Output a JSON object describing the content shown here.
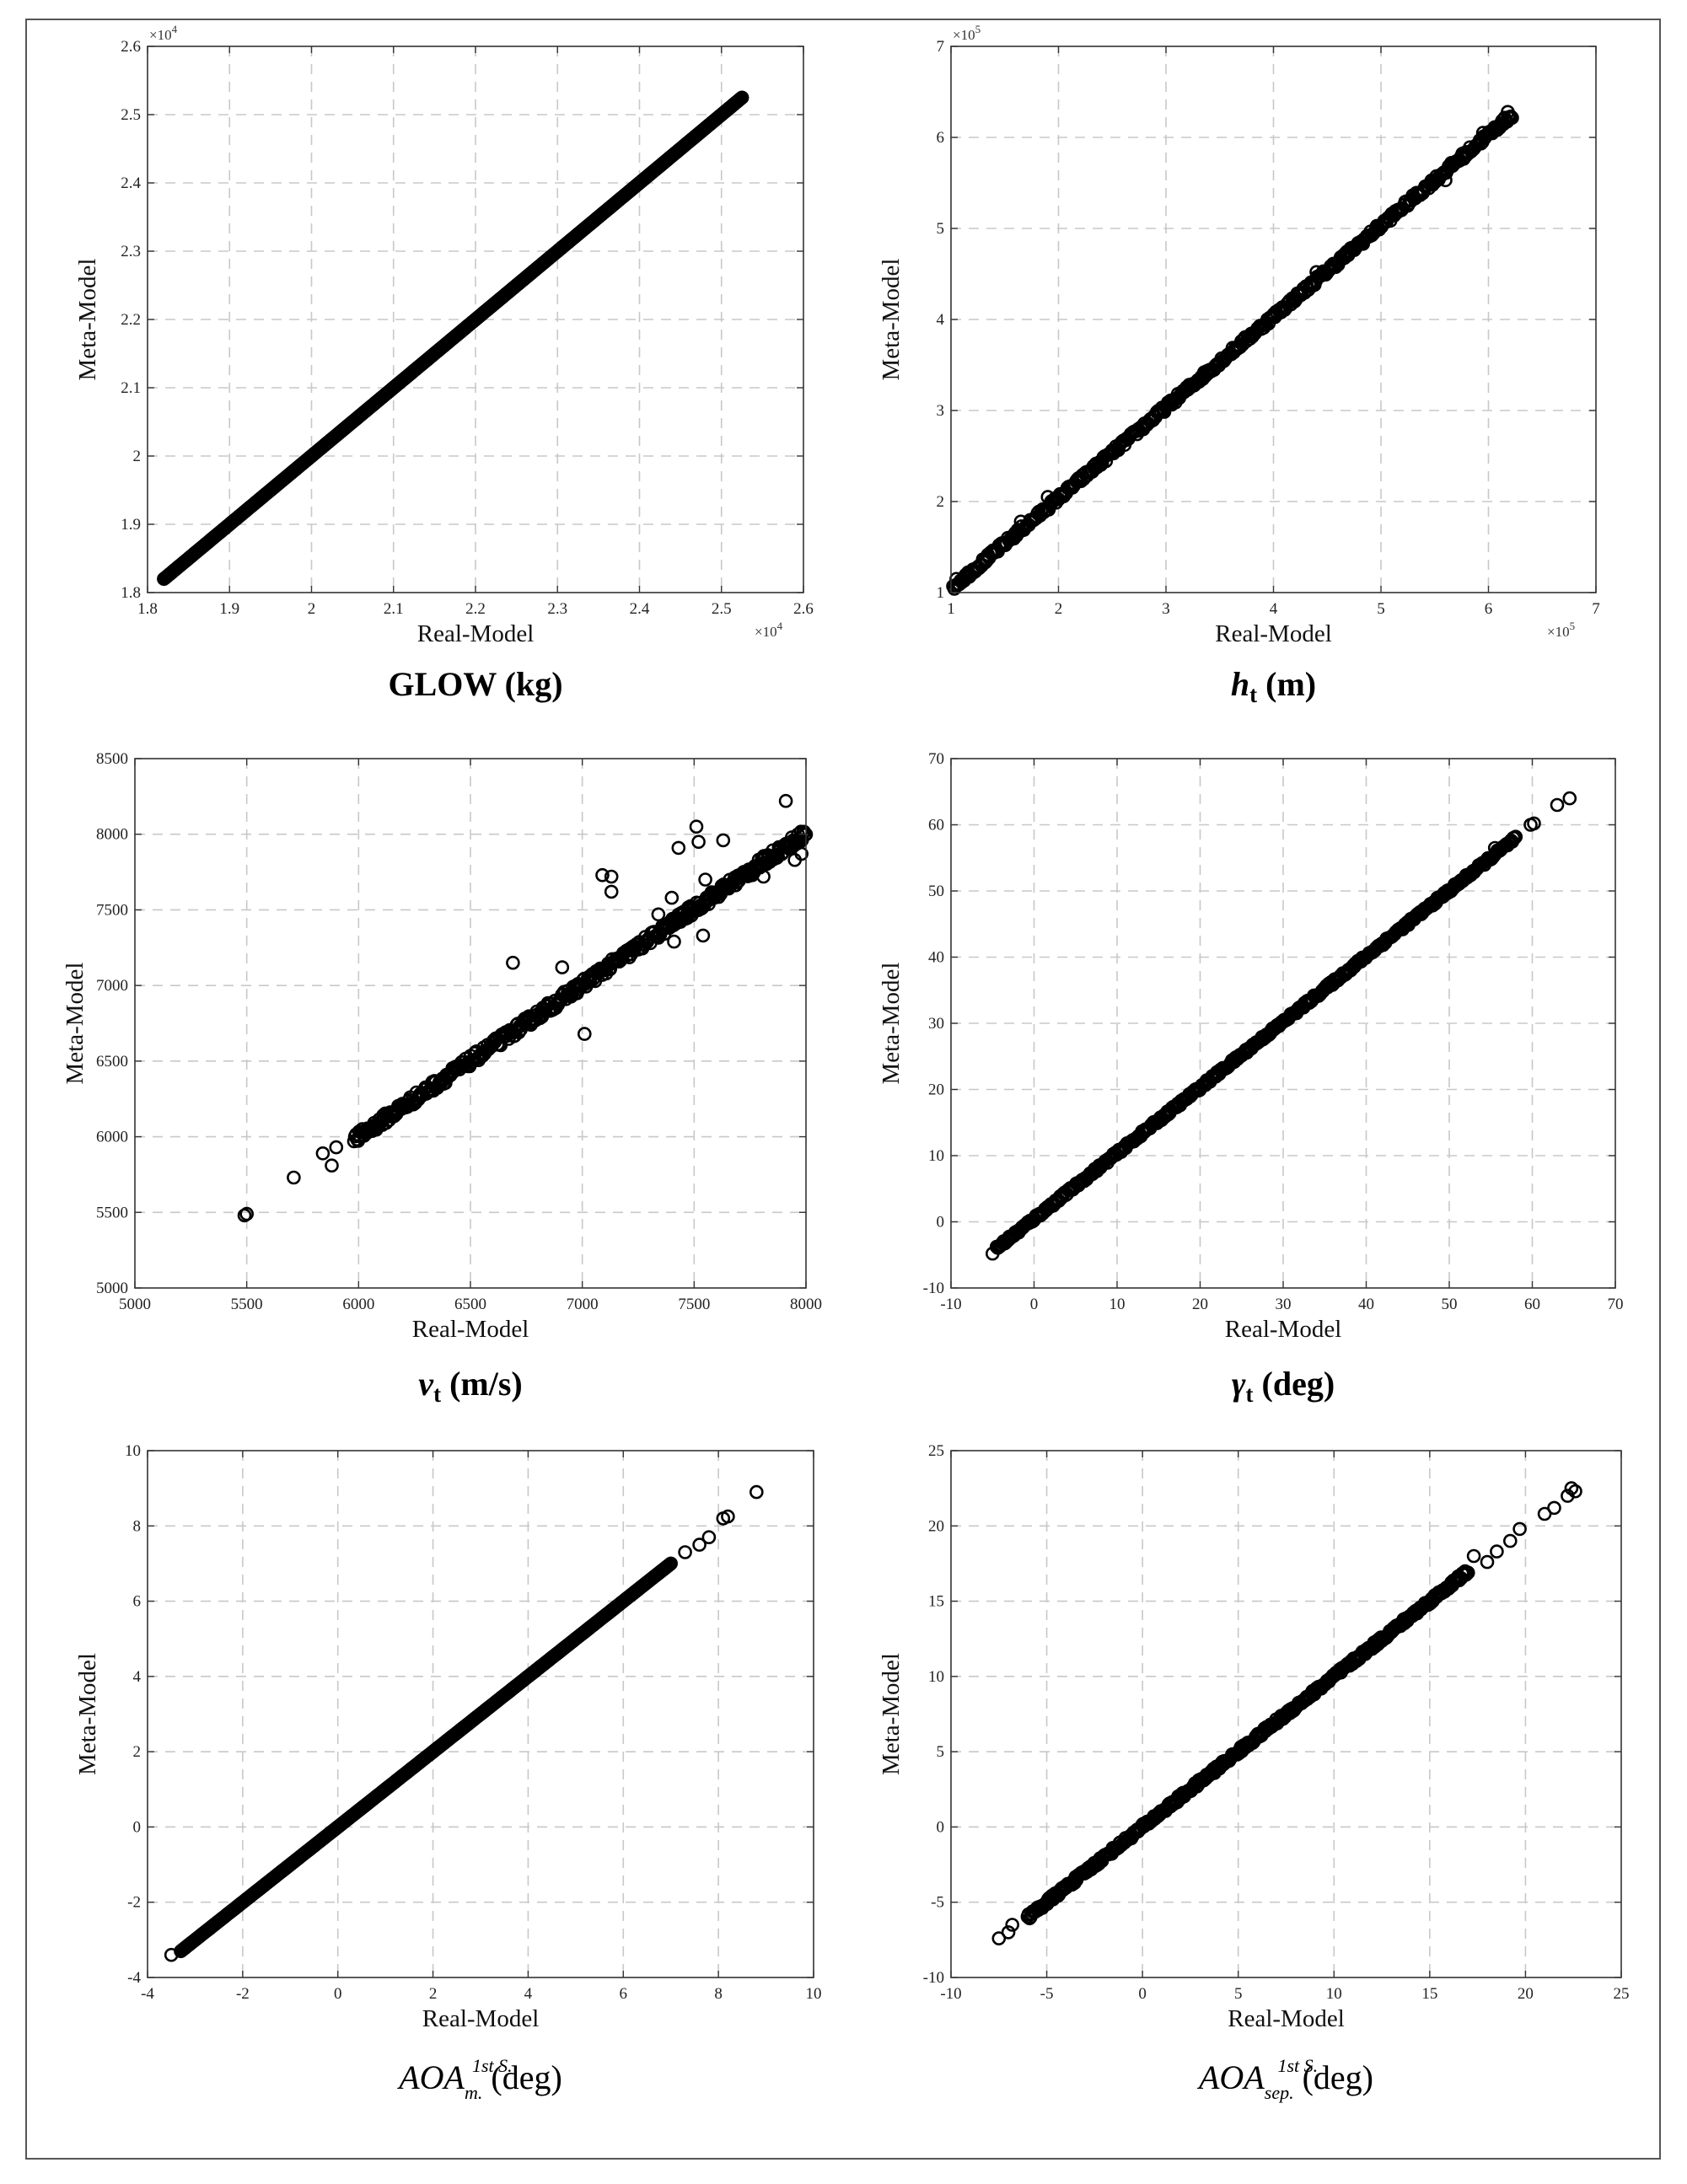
{
  "chart_data": [
    {
      "type": "scatter",
      "title": "GLOW (kg)",
      "xlabel": "Real-Model",
      "ylabel": "Meta-Model",
      "xlim": [
        18000,
        26000
      ],
      "ylim": [
        18000,
        26000
      ],
      "xticks": [
        18000,
        19000,
        20000,
        21000,
        22000,
        23000,
        24000,
        25000,
        26000
      ],
      "yticks": [
        18000,
        19000,
        20000,
        21000,
        22000,
        23000,
        24000,
        25000,
        26000
      ],
      "xtick_labels": [
        "1.8",
        "1.9",
        "2",
        "2.1",
        "2.2",
        "2.3",
        "2.4",
        "2.5",
        "2.6"
      ],
      "ytick_labels": [
        "1.8",
        "1.9",
        "2",
        "2.1",
        "2.2",
        "2.3",
        "2.4",
        "2.5",
        "2.6"
      ],
      "x_multiplier": "×10",
      "x_multiplier_exp": "4",
      "y_multiplier": "×10",
      "y_multiplier_exp": "4",
      "grid": true,
      "line": [
        [
          18200,
          18200
        ],
        [
          25250,
          25250
        ]
      ],
      "line_jitter": 0,
      "outliers": []
    },
    {
      "type": "scatter",
      "title": "h",
      "title_sub": "t",
      "title_unit": "(m)",
      "xlabel": "Real-Model",
      "ylabel": "Meta-Model",
      "xlim": [
        100000,
        700000
      ],
      "ylim": [
        100000,
        700000
      ],
      "xticks": [
        100000,
        200000,
        300000,
        400000,
        500000,
        600000,
        700000
      ],
      "yticks": [
        100000,
        200000,
        300000,
        400000,
        500000,
        600000,
        700000
      ],
      "xtick_labels": [
        "1",
        "2",
        "3",
        "4",
        "5",
        "6",
        "7"
      ],
      "ytick_labels": [
        "1",
        "2",
        "3",
        "4",
        "5",
        "6",
        "7"
      ],
      "x_multiplier": "×10",
      "x_multiplier_exp": "5",
      "y_multiplier": "×10",
      "y_multiplier_exp": "5",
      "grid": true,
      "line": [
        [
          102000,
          106000
        ],
        [
          622000,
          625000
        ]
      ],
      "line_jitter": 0.006,
      "outliers": [
        [
          105000,
          115000
        ],
        [
          110000,
          113000
        ],
        [
          165000,
          178000
        ],
        [
          440000,
          452000
        ],
        [
          595000,
          605000
        ],
        [
          618000,
          628000
        ],
        [
          612000,
          615000
        ],
        [
          560000,
          553000
        ],
        [
          190000,
          205000
        ]
      ]
    },
    {
      "type": "scatter",
      "title": "v",
      "title_sub": "t",
      "title_unit": "(m/s)",
      "xlabel": "Real-Model",
      "ylabel": "Meta-Model",
      "xlim": [
        5000,
        8000
      ],
      "ylim": [
        5000,
        8500
      ],
      "xticks": [
        5000,
        5500,
        6000,
        6500,
        7000,
        7500,
        8000
      ],
      "yticks": [
        5000,
        5500,
        6000,
        6500,
        7000,
        7500,
        8000,
        8500
      ],
      "xtick_labels": [
        "5000",
        "5500",
        "6000",
        "6500",
        "7000",
        "7500",
        "8000"
      ],
      "ytick_labels": [
        "5000",
        "5500",
        "6000",
        "6500",
        "7000",
        "7500",
        "8000",
        "8500"
      ],
      "grid": true,
      "line": [
        [
          5980,
          5980
        ],
        [
          8000,
          8010
        ]
      ],
      "line_jitter": 0.01,
      "outliers": [
        [
          5490,
          5480
        ],
        [
          5500,
          5490
        ],
        [
          5710,
          5730
        ],
        [
          5840,
          5890
        ],
        [
          5880,
          5810
        ],
        [
          5900,
          5930
        ],
        [
          6690,
          7150
        ],
        [
          6910,
          7120
        ],
        [
          7010,
          6680
        ],
        [
          7090,
          7730
        ],
        [
          7130,
          7720
        ],
        [
          7130,
          7620
        ],
        [
          7340,
          7470
        ],
        [
          7400,
          7580
        ],
        [
          7430,
          7910
        ],
        [
          7510,
          8050
        ],
        [
          7520,
          7950
        ],
        [
          7540,
          7330
        ],
        [
          7550,
          7700
        ],
        [
          7630,
          7960
        ],
        [
          7760,
          7730
        ],
        [
          7810,
          7720
        ],
        [
          7910,
          8220
        ],
        [
          7950,
          7830
        ],
        [
          7980,
          7870
        ],
        [
          7590,
          7580
        ],
        [
          7410,
          7290
        ],
        [
          7220,
          7250
        ]
      ]
    },
    {
      "type": "scatter",
      "title": "γ",
      "title_sub": "t",
      "title_unit": "(deg)",
      "xlabel": "Real-Model",
      "ylabel": "Meta-Model",
      "xlim": [
        -10,
        70
      ],
      "ylim": [
        -10,
        70
      ],
      "xticks": [
        -10,
        0,
        10,
        20,
        30,
        40,
        50,
        60,
        70
      ],
      "yticks": [
        -10,
        0,
        10,
        20,
        30,
        40,
        50,
        60,
        70
      ],
      "xtick_labels": [
        "-10",
        "0",
        "10",
        "20",
        "30",
        "40",
        "50",
        "60",
        "70"
      ],
      "ytick_labels": [
        "-10",
        "0",
        "10",
        "20",
        "30",
        "40",
        "50",
        "60",
        "70"
      ],
      "grid": true,
      "line": [
        [
          -4.5,
          -4
        ],
        [
          58,
          58
        ]
      ],
      "line_jitter": 0.004,
      "outliers": [
        [
          -5,
          -4.8
        ],
        [
          55.5,
          56.5
        ],
        [
          57,
          57
        ],
        [
          59.8,
          60
        ],
        [
          60.2,
          60.2
        ],
        [
          63,
          63
        ],
        [
          64.5,
          64
        ]
      ]
    },
    {
      "type": "scatter",
      "title": "AOA",
      "title_sup": "1st S.",
      "title_sub": "m.",
      "title_unit": "(deg)",
      "xlabel": "Real-Model",
      "ylabel": "Meta-Model",
      "xlim": [
        -4,
        10
      ],
      "ylim": [
        -4,
        10
      ],
      "xticks": [
        -4,
        -2,
        0,
        2,
        4,
        6,
        8,
        10
      ],
      "yticks": [
        -4,
        -2,
        0,
        2,
        4,
        6,
        8,
        10
      ],
      "xtick_labels": [
        "-4",
        "-2",
        "0",
        "2",
        "4",
        "6",
        "8",
        "10"
      ],
      "ytick_labels": [
        "-4",
        "-2",
        "0",
        "2",
        "4",
        "6",
        "8",
        "10"
      ],
      "grid": true,
      "line": [
        [
          -3.3,
          -3.3
        ],
        [
          7.0,
          7.0
        ]
      ],
      "line_jitter": 0,
      "outliers": [
        [
          -3.5,
          -3.4
        ],
        [
          7.3,
          7.3
        ],
        [
          7.6,
          7.5
        ],
        [
          7.8,
          7.7
        ],
        [
          8.1,
          8.2
        ],
        [
          8.2,
          8.25
        ],
        [
          8.8,
          8.9
        ]
      ]
    },
    {
      "type": "scatter",
      "title": "AOA",
      "title_sup": "1st S.",
      "title_sub": "sep.",
      "title_unit": "(deg)",
      "xlabel": "Real-Model",
      "ylabel": "Meta-Model",
      "xlim": [
        -10,
        25
      ],
      "ylim": [
        -10,
        25
      ],
      "xticks": [
        -10,
        -5,
        0,
        5,
        10,
        15,
        20,
        25
      ],
      "yticks": [
        -10,
        -5,
        0,
        5,
        10,
        15,
        20,
        25
      ],
      "xtick_labels": [
        "-10",
        "-5",
        "0",
        "5",
        "10",
        "15",
        "20",
        "25"
      ],
      "ytick_labels": [
        "-10",
        "-5",
        "0",
        "5",
        "10",
        "15",
        "20",
        "25"
      ],
      "grid": true,
      "line": [
        [
          -6,
          -6
        ],
        [
          17,
          17
        ]
      ],
      "line_jitter": 0.005,
      "outliers": [
        [
          -7.5,
          -7.4
        ],
        [
          -7,
          -7
        ],
        [
          -6.8,
          -6.5
        ],
        [
          17.3,
          18
        ],
        [
          18,
          17.6
        ],
        [
          18.5,
          18.3
        ],
        [
          19.2,
          19
        ],
        [
          19.7,
          19.8
        ],
        [
          21,
          20.8
        ],
        [
          21.5,
          21.2
        ],
        [
          22.2,
          22
        ],
        [
          22.4,
          22.5
        ],
        [
          22.6,
          22.3
        ]
      ]
    }
  ]
}
